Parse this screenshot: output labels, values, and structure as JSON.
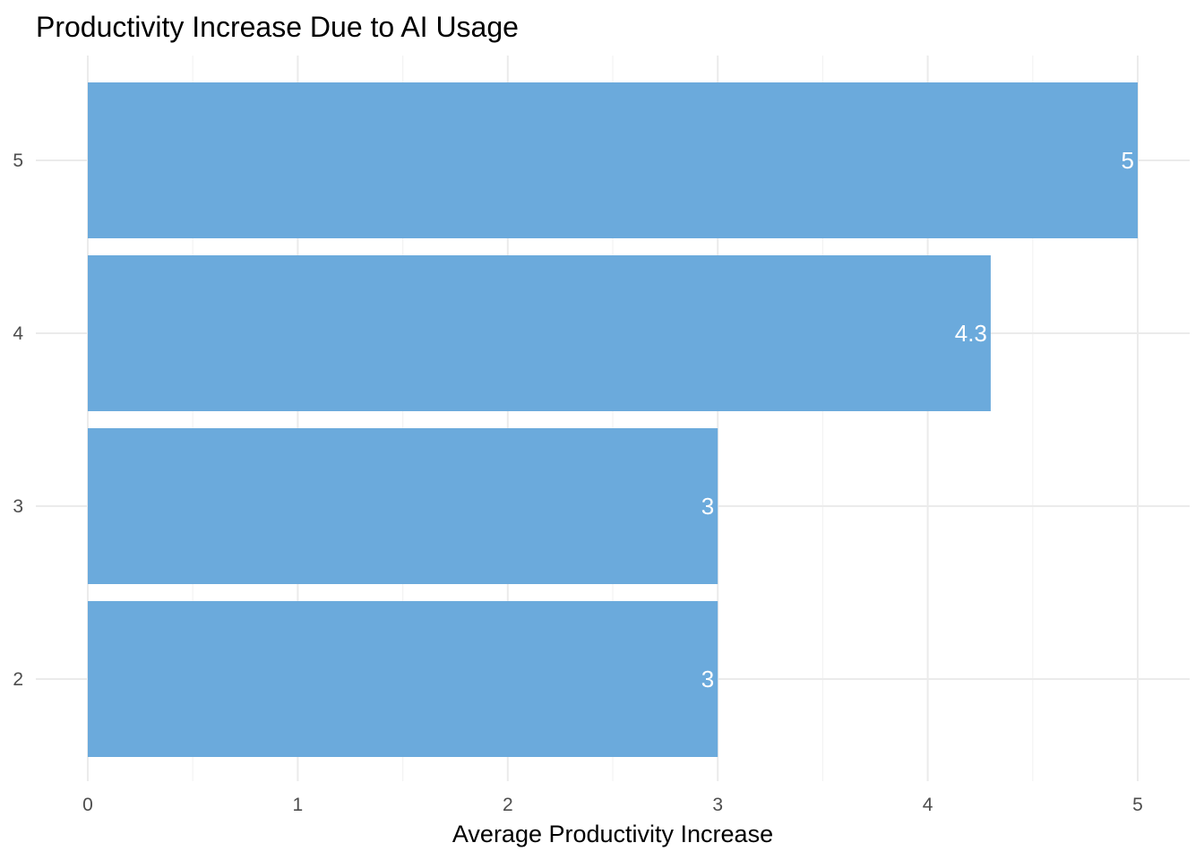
{
  "chart_data": {
    "type": "bar",
    "orientation": "horizontal",
    "title": "Productivity Increase Due to AI Usage",
    "xlabel": "Average Productivity Increase",
    "ylabel": "",
    "categories": [
      "2",
      "3",
      "4",
      "5"
    ],
    "values": [
      3,
      3,
      4.3,
      5
    ],
    "data_labels": [
      "3",
      "3",
      "4.3",
      "5"
    ],
    "xlim": [
      0,
      5
    ],
    "x_ticks": [
      0,
      1,
      2,
      3,
      4,
      5
    ],
    "x_tick_labels": [
      "0",
      "1",
      "2",
      "3",
      "4",
      "5"
    ],
    "grid": true,
    "legend": "none",
    "colors": {
      "bar": "#6baadc",
      "bar_label": "#ffffff",
      "grid_major": "#ebebeb",
      "grid_minor": "#f3f3f3",
      "tick_label": "#4d4d4d",
      "text": "#000000",
      "background": "#ffffff"
    }
  }
}
